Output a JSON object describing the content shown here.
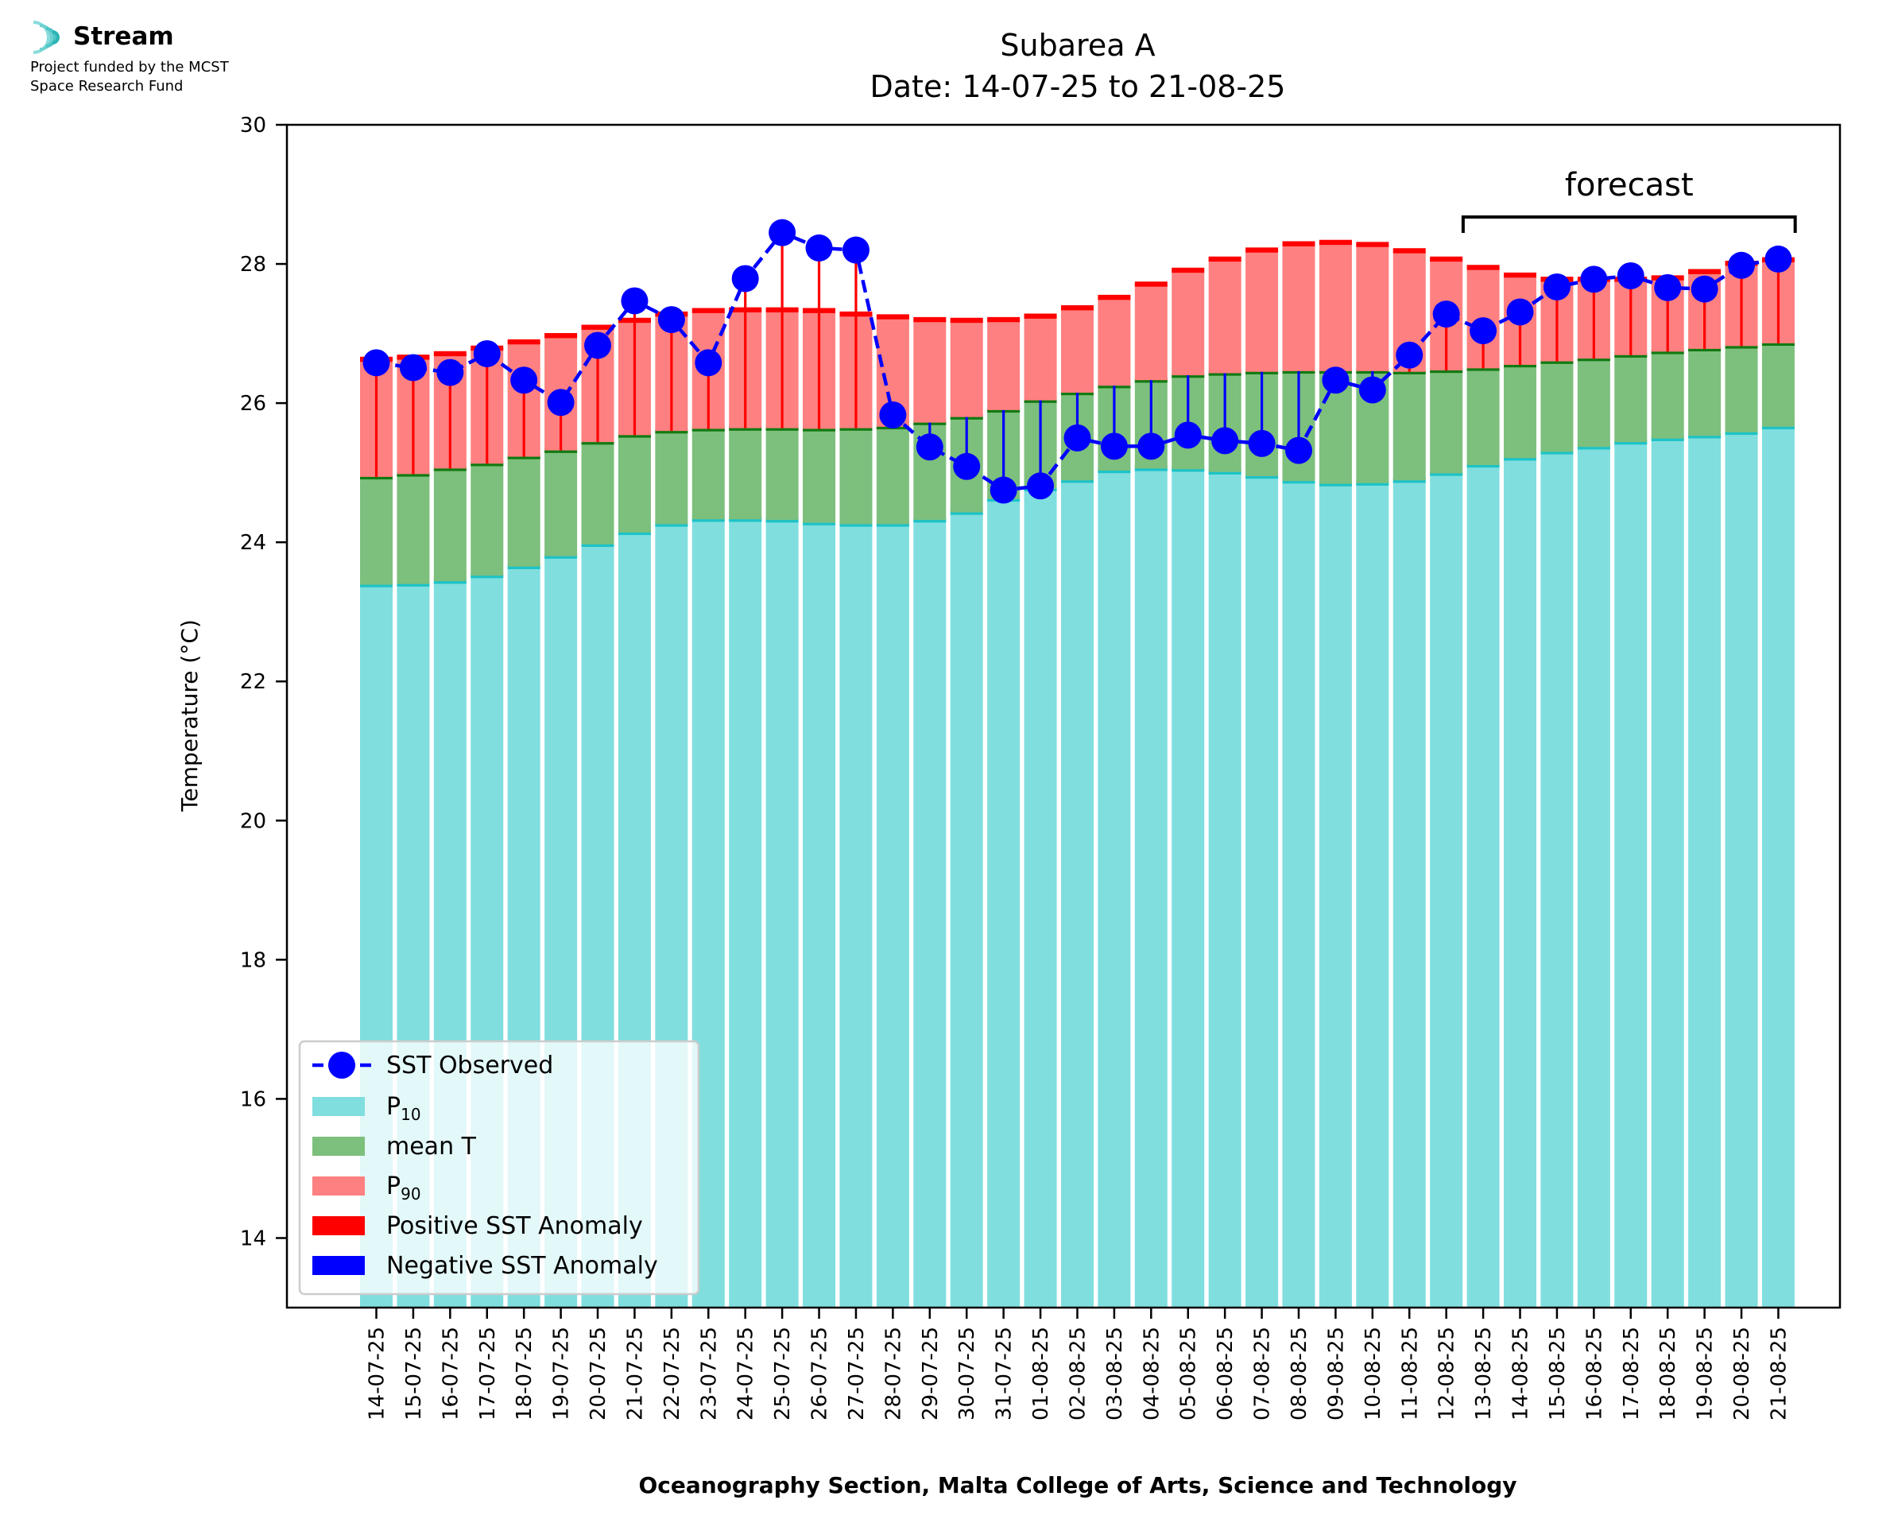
{
  "logo": {
    "name": "Stream",
    "funding_line1": "Project funded by the MCST",
    "funding_line2": "Space Research Fund"
  },
  "colors": {
    "p10": "#80DEDE",
    "p10_edge": "#1CC3C8",
    "mean": "#7DBF7D",
    "mean_edge": "#117A11",
    "p90": "#FF8080",
    "p90_edge": "#FF0000",
    "sst": "#0000FF",
    "pos_anom": "#FF0000",
    "neg_anom": "#0000FF"
  },
  "chart_data": {
    "type": "bar",
    "title": "Subarea A",
    "subtitle": "Date: 14-07-25 to 21-08-25",
    "xlabel": "Oceanography Section, Malta College of Arts, Science and Technology",
    "ylabel": "Temperature (°C)",
    "ylim": [
      13,
      30
    ],
    "yticks": [
      14,
      16,
      18,
      20,
      22,
      24,
      26,
      28,
      30
    ],
    "categories": [
      "14-07-25",
      "15-07-25",
      "16-07-25",
      "17-07-25",
      "18-07-25",
      "19-07-25",
      "20-07-25",
      "21-07-25",
      "22-07-25",
      "23-07-25",
      "24-07-25",
      "25-07-25",
      "26-07-25",
      "27-07-25",
      "28-07-25",
      "29-07-25",
      "30-07-25",
      "31-07-25",
      "01-08-25",
      "02-08-25",
      "03-08-25",
      "04-08-25",
      "05-08-25",
      "06-08-25",
      "07-08-25",
      "08-08-25",
      "09-08-25",
      "10-08-25",
      "11-08-25",
      "12-08-25",
      "13-08-25",
      "14-08-25",
      "15-08-25",
      "16-08-25",
      "17-08-25",
      "18-08-25",
      "19-08-25",
      "20-08-25",
      "21-08-25"
    ],
    "series": [
      {
        "name": "P10",
        "values": [
          23.39,
          23.4,
          23.44,
          23.52,
          23.65,
          23.8,
          23.97,
          24.14,
          24.26,
          24.33,
          24.33,
          24.32,
          24.28,
          24.26,
          24.26,
          24.32,
          24.43,
          24.62,
          24.77,
          24.89,
          25.03,
          25.06,
          25.05,
          25.01,
          24.95,
          24.88,
          24.84,
          24.85,
          24.89,
          24.99,
          25.11,
          25.21,
          25.3,
          25.37,
          25.44,
          25.49,
          25.53,
          25.58,
          25.66
        ]
      },
      {
        "name": "mean T",
        "values": [
          24.94,
          24.98,
          25.06,
          25.13,
          25.23,
          25.32,
          25.44,
          25.54,
          25.6,
          25.63,
          25.64,
          25.64,
          25.63,
          25.64,
          25.66,
          25.72,
          25.8,
          25.9,
          26.04,
          26.15,
          26.25,
          26.33,
          26.4,
          26.43,
          26.45,
          26.46,
          26.46,
          26.46,
          26.45,
          26.47,
          26.5,
          26.55,
          26.6,
          26.64,
          26.69,
          26.74,
          26.78,
          26.82,
          26.86
        ]
      },
      {
        "name": "P90",
        "values": [
          26.63,
          26.66,
          26.71,
          26.79,
          26.88,
          26.97,
          27.09,
          27.19,
          27.28,
          27.33,
          27.34,
          27.34,
          27.33,
          27.28,
          27.24,
          27.2,
          27.19,
          27.2,
          27.25,
          27.37,
          27.52,
          27.71,
          27.91,
          28.07,
          28.2,
          28.29,
          28.31,
          28.28,
          28.19,
          28.07,
          27.95,
          27.84,
          27.78,
          27.78,
          27.78,
          27.8,
          27.89,
          28.01,
          28.06
        ]
      },
      {
        "name": "SST Observed",
        "values": [
          26.58,
          26.51,
          26.44,
          26.71,
          26.33,
          26.01,
          26.83,
          27.47,
          27.2,
          26.58,
          27.79,
          28.45,
          28.23,
          28.2,
          25.83,
          25.37,
          25.09,
          24.75,
          24.81,
          25.5,
          25.38,
          25.38,
          25.54,
          25.46,
          25.42,
          25.32,
          26.33,
          26.19,
          26.69,
          27.28,
          27.04,
          27.31,
          27.67,
          27.78,
          27.83,
          27.66,
          27.64,
          27.98,
          28.07
        ]
      }
    ],
    "legend": {
      "placement": "lower-left",
      "entries": [
        "SST Observed",
        "P",
        "mean T",
        "P",
        "Positive SST Anomaly",
        "Negative SST Anomaly"
      ],
      "sub": {
        "p10": "10",
        "p90": "90"
      }
    },
    "annotation": {
      "text": "forecast",
      "from": "13-08-25",
      "to": "21-08-25"
    },
    "grid": false
  }
}
